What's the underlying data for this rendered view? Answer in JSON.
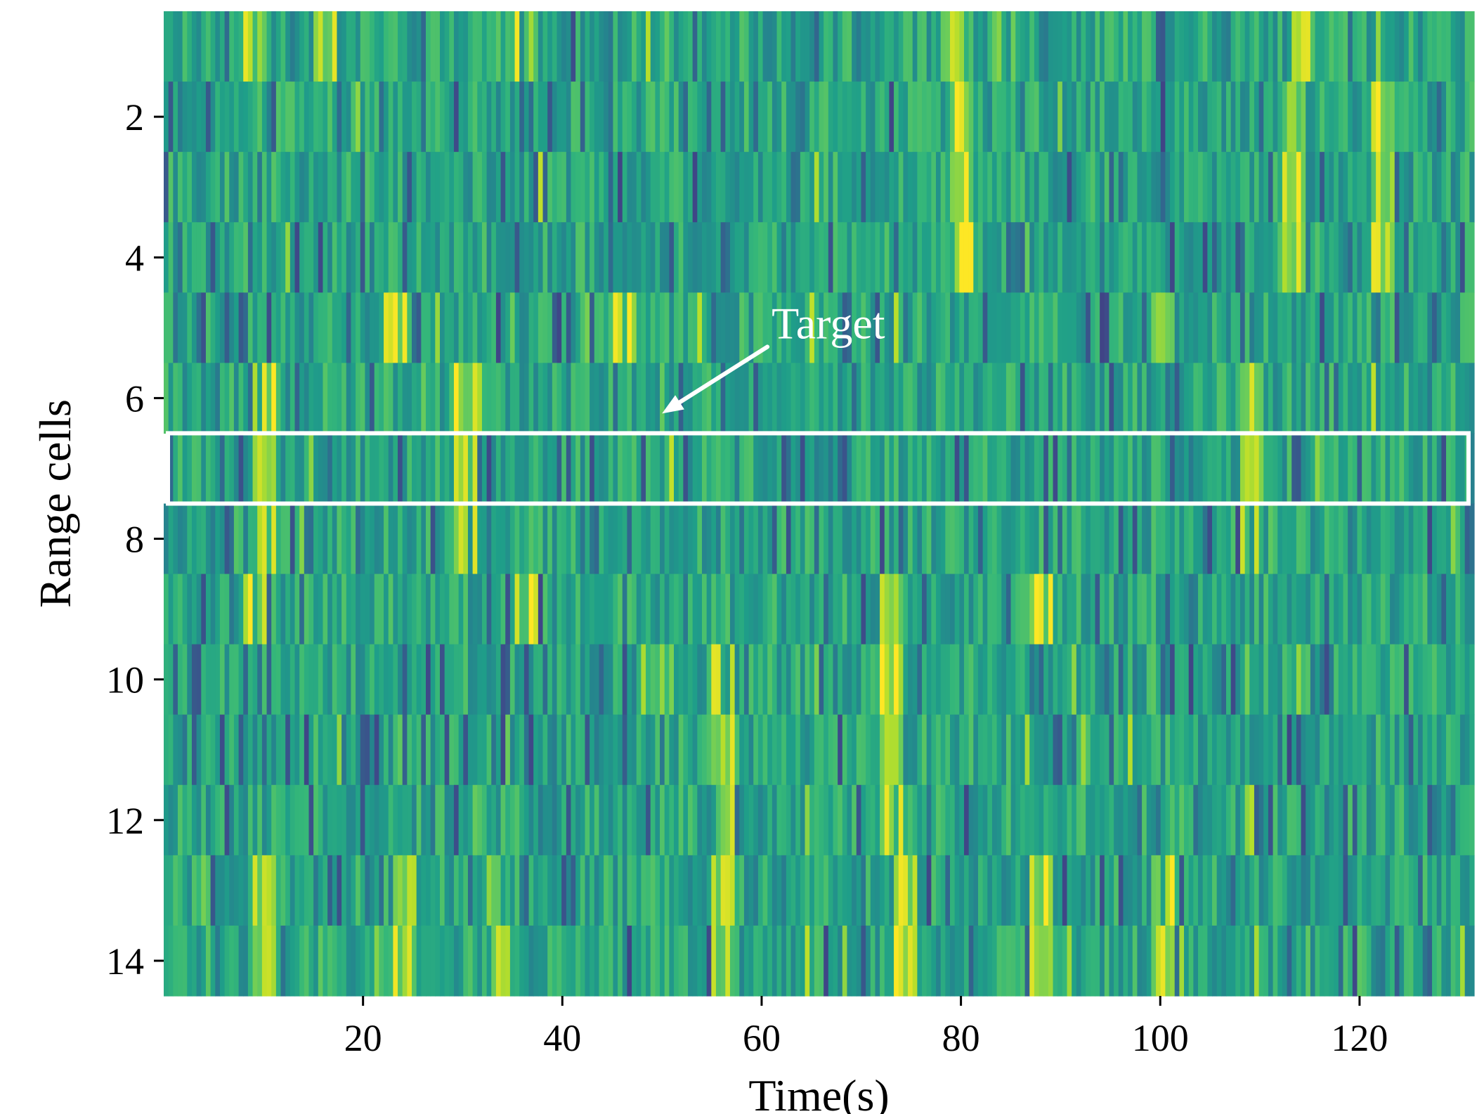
{
  "chart_data": {
    "type": "heatmap",
    "title": "",
    "xlabel": "Time(s)",
    "ylabel": "Range cells",
    "xlim": [
      0,
      131.5
    ],
    "ylim": [
      0.5,
      14.5
    ],
    "x_ticks": [
      20,
      40,
      60,
      80,
      100,
      120
    ],
    "y_ticks": [
      2,
      4,
      6,
      8,
      10,
      12,
      14
    ],
    "colormap": "viridis",
    "value_range": [
      0.45,
      0.93
    ],
    "rows": [
      1,
      2,
      3,
      4,
      5,
      6,
      7,
      8,
      9,
      10,
      11,
      12,
      13,
      14
    ],
    "highlighted_row": 7,
    "highlight_color": "#ffffff",
    "annotation": {
      "text": "Target",
      "row": 7,
      "time": 50
    },
    "bright_columns": [
      {
        "rows": [
          1
        ],
        "times": [
          9,
          16,
          36,
          79,
          84,
          114
        ]
      },
      {
        "rows": [
          2,
          3,
          4
        ],
        "times": [
          80,
          113,
          122
        ]
      },
      {
        "rows": [
          5
        ],
        "times": [
          23,
          46,
          100
        ]
      },
      {
        "rows": [
          6,
          7,
          8
        ],
        "times": [
          10,
          30,
          109
        ]
      },
      {
        "rows": [
          9
        ],
        "times": [
          9,
          36,
          73,
          88
        ]
      },
      {
        "rows": [
          10,
          11,
          12
        ],
        "times": [
          56,
          73
        ]
      },
      {
        "rows": [
          13,
          14
        ],
        "times": [
          10,
          24,
          34,
          56,
          74,
          88,
          100
        ]
      }
    ]
  }
}
